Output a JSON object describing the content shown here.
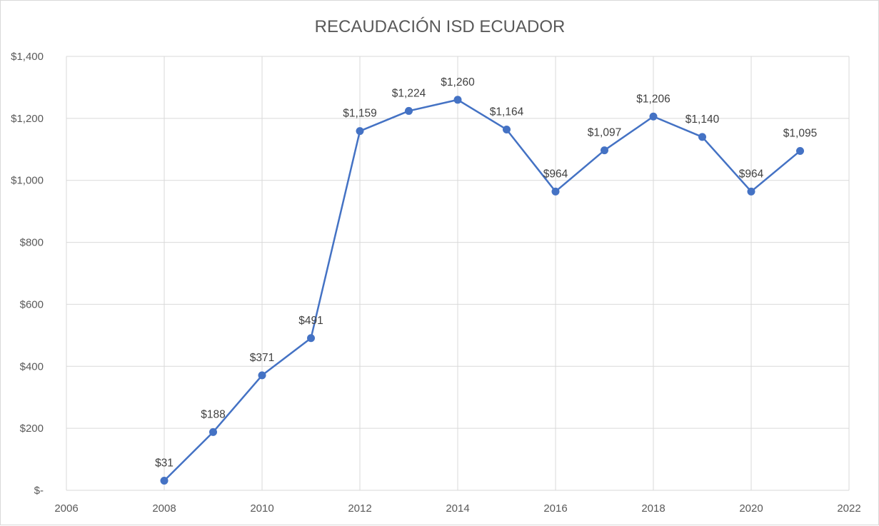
{
  "chart_data": {
    "type": "line",
    "title": "RECAUDACIÓN ISD ECUADOR",
    "xlabel": "",
    "ylabel": "",
    "x": [
      2008,
      2009,
      2010,
      2011,
      2012,
      2013,
      2014,
      2015,
      2016,
      2017,
      2018,
      2019,
      2020,
      2021
    ],
    "series": [
      {
        "values": [
          31,
          188,
          371,
          491,
          1159,
          1224,
          1260,
          1164,
          964,
          1097,
          1206,
          1140,
          964,
          1095
        ],
        "labels": [
          "$31",
          "$188",
          "$371",
          "$491",
          "$1,159",
          "$1,224",
          "$1,260",
          "$1,164",
          "$964",
          "$1,097",
          "$1,206",
          "$1,140",
          "$964",
          "$1,095"
        ]
      }
    ],
    "xlim": [
      2006,
      2022
    ],
    "ylim": [
      0,
      1400
    ],
    "x_ticks": [
      2006,
      2008,
      2010,
      2012,
      2014,
      2016,
      2018,
      2020,
      2022
    ],
    "x_tick_labels": [
      "2006",
      "2008",
      "2010",
      "2012",
      "2014",
      "2016",
      "2018",
      "2020",
      "2022"
    ],
    "y_ticks": [
      0,
      200,
      400,
      600,
      800,
      1000,
      1200,
      1400
    ],
    "y_tick_labels": [
      "$-",
      "$200",
      "$400",
      "$600",
      "$800",
      "$1,000",
      "$1,200",
      "$1,400"
    ],
    "grid": true,
    "legend": "none",
    "colors": {
      "line": "#4472c4",
      "grid": "#d9d9d9",
      "text": "#595959"
    }
  }
}
